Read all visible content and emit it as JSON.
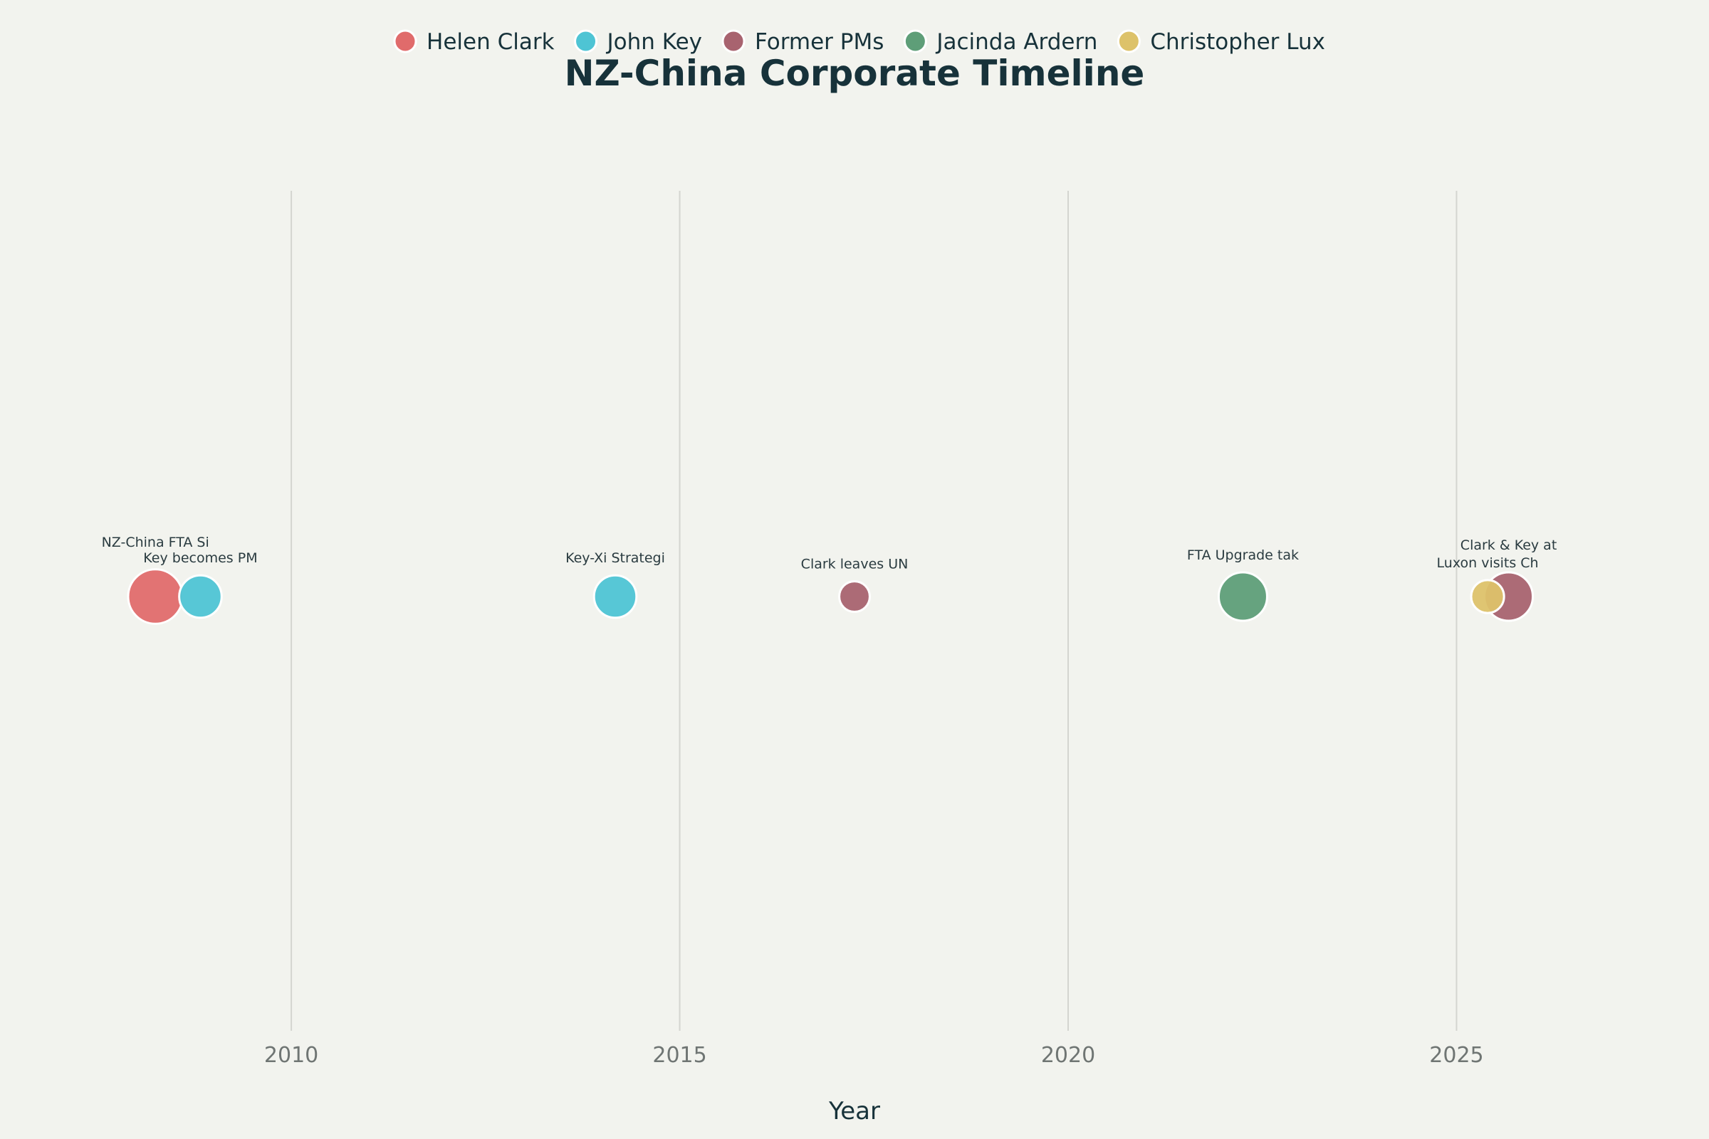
{
  "chart_data": {
    "type": "scatter",
    "title": "NZ-China Corporate Timeline",
    "xlabel": "Year",
    "ylabel": "",
    "xlim": [
      2006.25,
      2028.25
    ],
    "x_ticks": [
      "2010",
      "2015",
      "2020",
      "2025"
    ],
    "grid": "vertical",
    "legend_position": "top",
    "series": [
      {
        "name": "Helen Clark",
        "color": "#E06B6B"
      },
      {
        "name": "John Key",
        "color": "#4EC4D4"
      },
      {
        "name": "Former PMs",
        "color": "#A8636F"
      },
      {
        "name": "Jacinda Ardern",
        "color": "#5E9E78"
      },
      {
        "name": "Christopher Lux",
        "color": "#DDC26A"
      }
    ],
    "points": [
      {
        "x": 2008.25,
        "series": "Helen Clark",
        "size": 3,
        "label": "NZ-China FTA Si",
        "label_rank": 1
      },
      {
        "x": 2008.83,
        "series": "John Key",
        "size": 2,
        "label": "Key becomes PM",
        "label_rank": 0
      },
      {
        "x": 2014.17,
        "series": "John Key",
        "size": 2,
        "label": "Key-Xi Strategi",
        "label_rank": 0
      },
      {
        "x": 2017.25,
        "series": "Former PMs",
        "size": 1,
        "label": "Clark leaves UN",
        "label_rank": 0
      },
      {
        "x": 2022.25,
        "series": "Jacinda Ardern",
        "size": 2.5,
        "label": "FTA Upgrade tak",
        "label_rank": 0
      },
      {
        "x": 2025.67,
        "series": "Former PMs",
        "size": 2.5,
        "label": "Clark & Key at",
        "label_rank": 1
      },
      {
        "x": 2025.4,
        "series": "Christopher Lux",
        "size": 1.2,
        "label": "Luxon visits Ch",
        "label_rank": 0
      }
    ]
  }
}
